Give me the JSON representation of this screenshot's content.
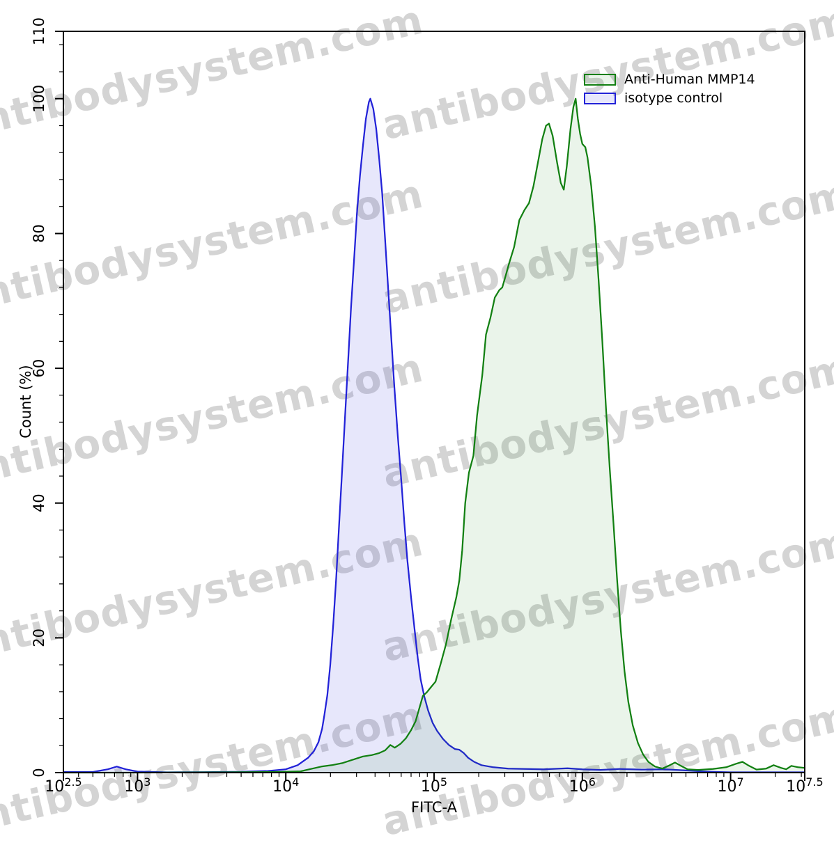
{
  "watermark": {
    "text": "antibodysystem.com"
  },
  "chart_data": {
    "type": "area",
    "title": "",
    "xlabel": "FITC-A",
    "ylabel": "Count  (%)",
    "x_scale": "log10",
    "xlim_log": [
      2.5,
      7.5
    ],
    "ylim": [
      0,
      110
    ],
    "grid": false,
    "legend_position": "top-right-inside",
    "tick_base": "10",
    "x_major_ticks": [
      {
        "log": 2.5,
        "exp": "2.5"
      },
      {
        "log": 3,
        "exp": "3"
      },
      {
        "log": 4,
        "exp": "4"
      },
      {
        "log": 5,
        "exp": "5"
      },
      {
        "log": 6,
        "exp": "6"
      },
      {
        "log": 7,
        "exp": "7"
      },
      {
        "log": 7.5,
        "exp": "7.5"
      }
    ],
    "y_major_ticks": [
      0,
      20,
      40,
      60,
      80,
      100,
      110
    ],
    "y_minor_step": 4,
    "series": [
      {
        "name": "Anti-Human MMP14",
        "stroke": "#128012",
        "fill": "rgba(20,128,20,0.09)",
        "peak": {
          "log_x": 5.955,
          "value": 100
        },
        "points": [
          [
            2.5,
            0
          ],
          [
            3.0,
            0
          ],
          [
            3.6,
            0.05
          ],
          [
            3.95,
            0.1
          ],
          [
            4.1,
            0.2
          ],
          [
            4.18,
            0.6
          ],
          [
            4.24,
            0.9
          ],
          [
            4.31,
            1.1
          ],
          [
            4.38,
            1.4
          ],
          [
            4.45,
            1.9
          ],
          [
            4.52,
            2.4
          ],
          [
            4.58,
            2.6
          ],
          [
            4.63,
            2.9
          ],
          [
            4.67,
            3.3
          ],
          [
            4.705,
            4.1
          ],
          [
            4.735,
            3.7
          ],
          [
            4.775,
            4.3
          ],
          [
            4.81,
            5.1
          ],
          [
            4.845,
            6.3
          ],
          [
            4.875,
            7.6
          ],
          [
            4.9,
            9.5
          ],
          [
            4.925,
            11.4
          ],
          [
            4.95,
            11.9
          ],
          [
            4.98,
            12.7
          ],
          [
            5.01,
            13.5
          ],
          [
            5.045,
            16.2
          ],
          [
            5.08,
            19
          ],
          [
            5.115,
            22.7
          ],
          [
            5.15,
            26
          ],
          [
            5.17,
            28.5
          ],
          [
            5.19,
            33
          ],
          [
            5.21,
            40
          ],
          [
            5.235,
            44.5
          ],
          [
            5.265,
            47
          ],
          [
            5.29,
            53
          ],
          [
            5.325,
            59
          ],
          [
            5.35,
            65
          ],
          [
            5.38,
            67.5
          ],
          [
            5.41,
            70.5
          ],
          [
            5.44,
            71.6
          ],
          [
            5.46,
            72
          ],
          [
            5.48,
            73.5
          ],
          [
            5.505,
            75.5
          ],
          [
            5.54,
            78
          ],
          [
            5.575,
            82
          ],
          [
            5.61,
            83.5
          ],
          [
            5.64,
            84.5
          ],
          [
            5.67,
            87
          ],
          [
            5.7,
            90.5
          ],
          [
            5.73,
            94
          ],
          [
            5.755,
            96
          ],
          [
            5.775,
            96.3
          ],
          [
            5.8,
            94.5
          ],
          [
            5.83,
            90.5
          ],
          [
            5.855,
            87.5
          ],
          [
            5.875,
            86.5
          ],
          [
            5.895,
            90
          ],
          [
            5.92,
            95.5
          ],
          [
            5.94,
            98.8
          ],
          [
            5.955,
            100
          ],
          [
            5.97,
            97
          ],
          [
            5.985,
            94.8
          ],
          [
            6.0,
            93.3
          ],
          [
            6.02,
            92.8
          ],
          [
            6.035,
            91.3
          ],
          [
            6.06,
            87
          ],
          [
            6.085,
            81
          ],
          [
            6.11,
            73
          ],
          [
            6.135,
            64
          ],
          [
            6.16,
            54
          ],
          [
            6.185,
            45
          ],
          [
            6.21,
            37
          ],
          [
            6.235,
            28.5
          ],
          [
            6.26,
            21
          ],
          [
            6.285,
            15
          ],
          [
            6.31,
            10.5
          ],
          [
            6.34,
            7
          ],
          [
            6.375,
            4.4
          ],
          [
            6.41,
            2.7
          ],
          [
            6.445,
            1.6
          ],
          [
            6.49,
            0.9
          ],
          [
            6.54,
            0.6
          ],
          [
            6.59,
            1.1
          ],
          [
            6.625,
            1.5
          ],
          [
            6.665,
            1.0
          ],
          [
            6.71,
            0.5
          ],
          [
            6.78,
            0.4
          ],
          [
            6.88,
            0.55
          ],
          [
            6.97,
            0.8
          ],
          [
            7.035,
            1.3
          ],
          [
            7.08,
            1.6
          ],
          [
            7.125,
            1.0
          ],
          [
            7.175,
            0.45
          ],
          [
            7.24,
            0.6
          ],
          [
            7.29,
            1.1
          ],
          [
            7.34,
            0.7
          ],
          [
            7.375,
            0.5
          ],
          [
            7.41,
            1.0
          ],
          [
            7.455,
            0.8
          ],
          [
            7.5,
            0.7
          ]
        ]
      },
      {
        "name": "isotype control",
        "stroke": "#2222d8",
        "fill": "rgba(60,60,220,0.12)",
        "peak": {
          "log_x": 4.57,
          "value": 100
        },
        "points": [
          [
            2.5,
            0.1
          ],
          [
            2.7,
            0.1
          ],
          [
            2.8,
            0.5
          ],
          [
            2.86,
            0.9
          ],
          [
            2.92,
            0.5
          ],
          [
            3.0,
            0.15
          ],
          [
            3.2,
            0.05
          ],
          [
            3.45,
            0.08
          ],
          [
            3.7,
            0.12
          ],
          [
            3.88,
            0.25
          ],
          [
            4.0,
            0.5
          ],
          [
            4.08,
            1.1
          ],
          [
            4.15,
            2.2
          ],
          [
            4.19,
            3.2
          ],
          [
            4.22,
            4.5
          ],
          [
            4.245,
            6.5
          ],
          [
            4.26,
            8.5
          ],
          [
            4.28,
            11.5
          ],
          [
            4.3,
            16
          ],
          [
            4.32,
            22
          ],
          [
            4.34,
            29
          ],
          [
            4.36,
            37
          ],
          [
            4.38,
            45
          ],
          [
            4.4,
            53
          ],
          [
            4.42,
            61
          ],
          [
            4.44,
            69
          ],
          [
            4.46,
            76
          ],
          [
            4.48,
            83
          ],
          [
            4.5,
            88.5
          ],
          [
            4.52,
            93
          ],
          [
            4.54,
            97
          ],
          [
            4.56,
            99.5
          ],
          [
            4.57,
            100
          ],
          [
            4.59,
            98.5
          ],
          [
            4.61,
            95.5
          ],
          [
            4.63,
            91
          ],
          [
            4.65,
            86
          ],
          [
            4.67,
            79
          ],
          [
            4.69,
            72
          ],
          [
            4.71,
            65
          ],
          [
            4.73,
            58
          ],
          [
            4.755,
            50
          ],
          [
            4.78,
            43
          ],
          [
            4.8,
            37
          ],
          [
            4.82,
            31.5
          ],
          [
            4.845,
            26
          ],
          [
            4.87,
            21
          ],
          [
            4.89,
            17
          ],
          [
            4.91,
            13.8
          ],
          [
            4.935,
            11.2
          ],
          [
            4.96,
            9.2
          ],
          [
            4.99,
            7.4
          ],
          [
            5.02,
            6.2
          ],
          [
            5.06,
            5.0
          ],
          [
            5.1,
            4.1
          ],
          [
            5.14,
            3.5
          ],
          [
            5.17,
            3.4
          ],
          [
            5.2,
            2.9
          ],
          [
            5.23,
            2.2
          ],
          [
            5.27,
            1.6
          ],
          [
            5.32,
            1.1
          ],
          [
            5.4,
            0.8
          ],
          [
            5.5,
            0.6
          ],
          [
            5.62,
            0.55
          ],
          [
            5.74,
            0.5
          ],
          [
            5.9,
            0.65
          ],
          [
            6.0,
            0.5
          ],
          [
            6.12,
            0.4
          ],
          [
            6.25,
            0.55
          ],
          [
            6.4,
            0.45
          ],
          [
            6.55,
            0.5
          ],
          [
            6.68,
            0.35
          ],
          [
            6.8,
            0.2
          ],
          [
            6.9,
            0.1
          ],
          [
            7.0,
            0.05
          ],
          [
            7.25,
            0.05
          ],
          [
            7.5,
            0.05
          ]
        ]
      }
    ]
  }
}
